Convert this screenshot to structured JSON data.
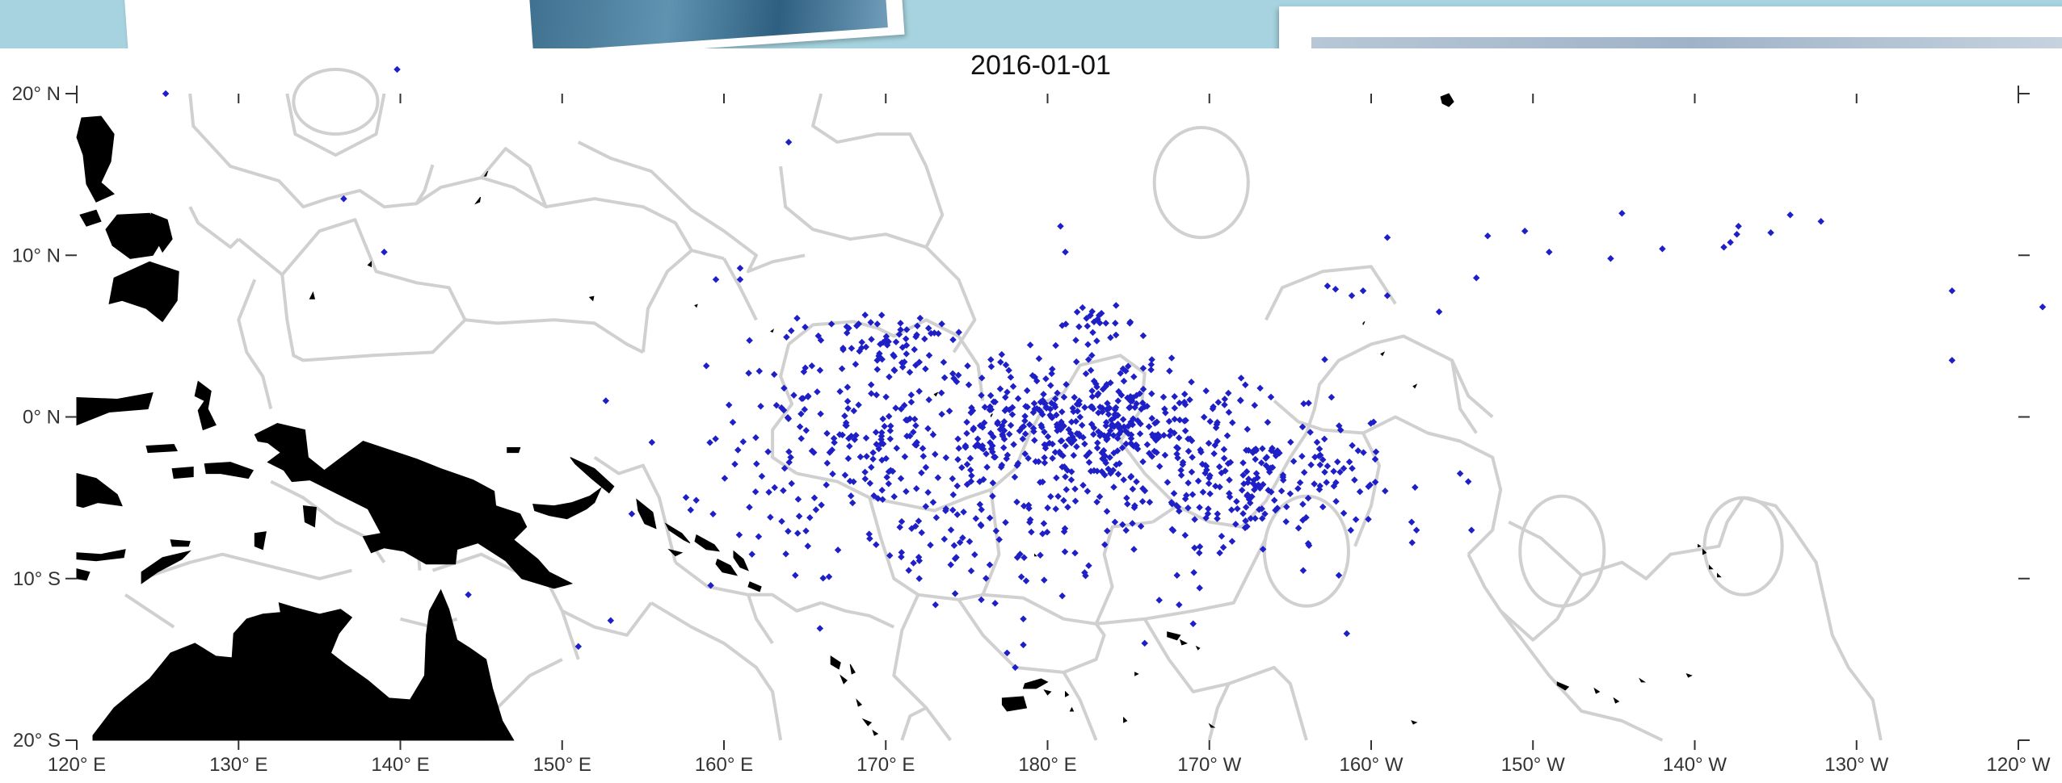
{
  "map": {
    "title": "2016-01-01",
    "x_ticks": [
      {
        "lon": 120,
        "label": "120° E"
      },
      {
        "lon": 130,
        "label": "130° E"
      },
      {
        "lon": 140,
        "label": "140° E"
      },
      {
        "lon": 150,
        "label": "150° E"
      },
      {
        "lon": 160,
        "label": "160° E"
      },
      {
        "lon": 170,
        "label": "170° E"
      },
      {
        "lon": 180,
        "label": "180° E"
      },
      {
        "lon": 190,
        "label": "170° W"
      },
      {
        "lon": 200,
        "label": "160° W"
      },
      {
        "lon": 210,
        "label": "150° W"
      },
      {
        "lon": 220,
        "label": "140° W"
      },
      {
        "lon": 230,
        "label": "130° W"
      },
      {
        "lon": 240,
        "label": "120° W"
      }
    ],
    "y_ticks": [
      {
        "lat": 20,
        "label": "20° N"
      },
      {
        "lat": 10,
        "label": "10° N"
      },
      {
        "lat": 0,
        "label": "0° N"
      },
      {
        "lat": -10,
        "label": "10° S"
      },
      {
        "lat": -20,
        "label": "20° S"
      }
    ],
    "lon_range": [
      120,
      240
    ],
    "lat_range": [
      -20,
      20
    ],
    "colors": {
      "points": "#1f1fc8",
      "land": "#000000",
      "boundaries": "#d0d0d0",
      "background": "#ffffff"
    }
  }
}
